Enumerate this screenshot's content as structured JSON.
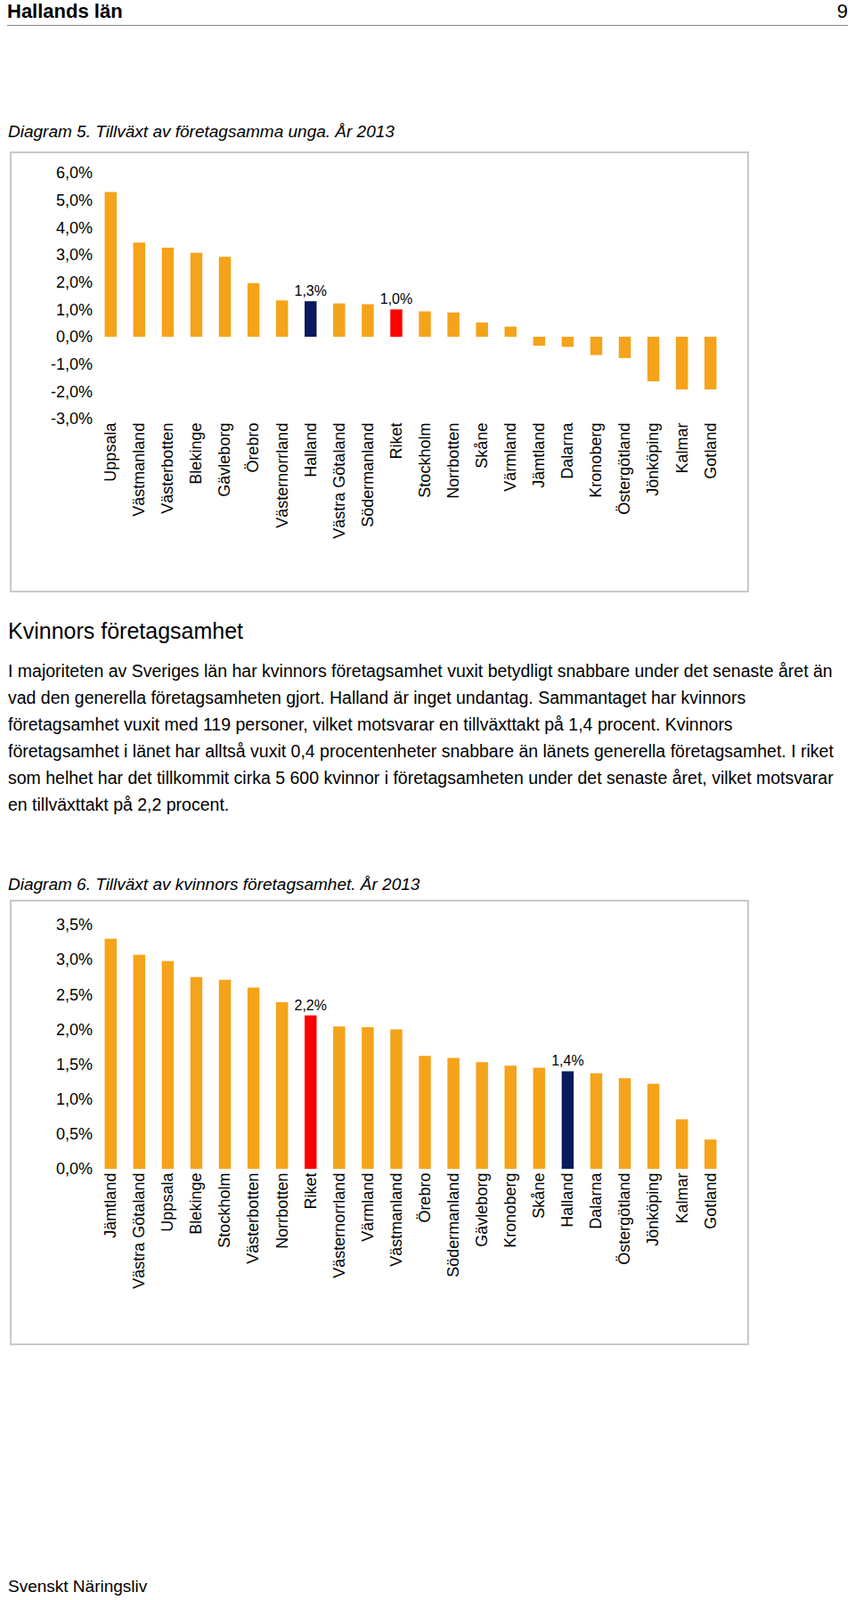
{
  "header": {
    "title": "Hallands län",
    "page": "9"
  },
  "chart_data": [
    {
      "type": "bar",
      "title": "Diagram 5. Tillväxt av företagsamma unga. År 2013",
      "categories": [
        "Uppsala",
        "Västmanland",
        "Västerbotten",
        "Blekinge",
        "Gävleborg",
        "Örebro",
        "Västernorrland",
        "Halland",
        "Västra Götaland",
        "Södermanland",
        "Riket",
        "Stockholm",
        "Norrbotten",
        "Skåne",
        "Värmland",
        "Jämtland",
        "Dalarna",
        "Kronoberg",
        "Östergötland",
        "Jönköping",
        "Kalmar",
        "Gotland"
      ],
      "values": [
        5.3,
        3.45,
        3.26,
        3.07,
        2.93,
        1.96,
        1.33,
        1.3,
        1.22,
        1.19,
        1.0,
        0.93,
        0.89,
        0.52,
        0.37,
        -0.33,
        -0.37,
        -0.67,
        -0.78,
        -1.63,
        -1.93,
        -1.93
      ],
      "value_labels": [
        null,
        null,
        null,
        null,
        null,
        null,
        null,
        "1,3%",
        null,
        null,
        "1,0%",
        null,
        null,
        null,
        null,
        null,
        null,
        null,
        null,
        null,
        null,
        null
      ],
      "data_labels": true,
      "colors": [
        "#f5a31a",
        "#f5a31a",
        "#f5a31a",
        "#f5a31a",
        "#f5a31a",
        "#f5a31a",
        "#f5a31a",
        "#0b1a5e",
        "#f5a31a",
        "#f5a31a",
        "#ff0000",
        "#f5a31a",
        "#f5a31a",
        "#f5a31a",
        "#f5a31a",
        "#f5a31a",
        "#f5a31a",
        "#f5a31a",
        "#f5a31a",
        "#f5a31a",
        "#f5a31a",
        "#f5a31a"
      ],
      "ylim": [
        -3,
        6
      ],
      "yticks": [
        {
          "value": -3,
          "label": "-3,0%"
        },
        {
          "value": -2,
          "label": "-2,0%"
        },
        {
          "value": -1,
          "label": "-1,0%"
        },
        {
          "value": 0,
          "label": "0,0%"
        },
        {
          "value": 1,
          "label": "1,0%"
        },
        {
          "value": 2,
          "label": "2,0%"
        },
        {
          "value": 3,
          "label": "3,0%"
        },
        {
          "value": 4,
          "label": "4,0%"
        },
        {
          "value": 5,
          "label": "5,0%"
        },
        {
          "value": 6,
          "label": "6,0%"
        }
      ],
      "grid": false
    },
    {
      "type": "bar",
      "title": "Diagram 6. Tillväxt av kvinnors företagsamhet. År 2013",
      "categories": [
        "Jämtland",
        "Västra Götaland",
        "Uppsala",
        "Blekinge",
        "Stockholm",
        "Västerbotten",
        "Norrbotten",
        "Riket",
        "Västernorrland",
        "Värmland",
        "Västmanland",
        "Örebro",
        "Södermanland",
        "Gävleborg",
        "Kronoberg",
        "Skåne",
        "Halland",
        "Dalarna",
        "Östergötland",
        "Jönköping",
        "Kalmar",
        "Gotland"
      ],
      "values": [
        3.3,
        3.07,
        2.98,
        2.75,
        2.71,
        2.6,
        2.39,
        2.2,
        2.04,
        2.03,
        2.0,
        1.62,
        1.59,
        1.53,
        1.48,
        1.45,
        1.4,
        1.37,
        1.3,
        1.22,
        0.71,
        0.42
      ],
      "value_labels": [
        null,
        null,
        null,
        null,
        null,
        null,
        null,
        "2,2%",
        null,
        null,
        null,
        null,
        null,
        null,
        null,
        null,
        "1,4%",
        null,
        null,
        null,
        null,
        null
      ],
      "data_labels": true,
      "colors": [
        "#f5a31a",
        "#f5a31a",
        "#f5a31a",
        "#f5a31a",
        "#f5a31a",
        "#f5a31a",
        "#f5a31a",
        "#ff0000",
        "#f5a31a",
        "#f5a31a",
        "#f5a31a",
        "#f5a31a",
        "#f5a31a",
        "#f5a31a",
        "#f5a31a",
        "#f5a31a",
        "#0b1a5e",
        "#f5a31a",
        "#f5a31a",
        "#f5a31a",
        "#f5a31a",
        "#f5a31a"
      ],
      "ylim": [
        0,
        3.5
      ],
      "yticks": [
        {
          "value": 0,
          "label": "0,0%"
        },
        {
          "value": 0.5,
          "label": "0,5%"
        },
        {
          "value": 1,
          "label": "1,0%"
        },
        {
          "value": 1.5,
          "label": "1,5%"
        },
        {
          "value": 2,
          "label": "2,0%"
        },
        {
          "value": 2.5,
          "label": "2,5%"
        },
        {
          "value": 3,
          "label": "3,0%"
        },
        {
          "value": 3.5,
          "label": "3,5%"
        }
      ],
      "grid": false
    }
  ],
  "section": {
    "heading": "Kvinnors företagsamhet",
    "text": "I majoriteten av Sveriges län har kvinnors företagsamhet vuxit betydligt snabbare under det senaste året än vad den generella företagsamheten gjort. Halland är inget undantag. Sammantaget har kvinnors företagsamhet vuxit med 119 personer, vilket motsvarar en tillväxttakt på 1,4 procent. Kvinnors företagsamhet i länet har alltså vuxit 0,4 procentenheter snabbare än länets generella företagsamhet. I riket som helhet har det tillkommit cirka 5 600 kvinnor i företagsamheten under det senaste året, vilket motsvarar en tillväxttakt på 2,2 procent."
  },
  "footer": "Svenskt Näringsliv"
}
